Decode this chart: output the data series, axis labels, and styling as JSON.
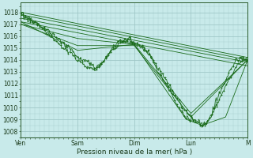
{
  "xlabel": "Pression niveau de la mer( hPa )",
  "bg_color": "#c8eaea",
  "grid_color": "#a0c8c8",
  "line_color": "#1a6b1a",
  "ylim": [
    1007.5,
    1018.8
  ],
  "yticks": [
    1008,
    1009,
    1010,
    1011,
    1012,
    1013,
    1014,
    1015,
    1016,
    1017,
    1018
  ],
  "xtick_labels": [
    "Ven",
    "Sam",
    "Dim",
    "Lun",
    "M"
  ],
  "xtick_positions": [
    0,
    72,
    144,
    216,
    288
  ],
  "total_points": 289,
  "figsize": [
    3.2,
    2.0
  ],
  "dpi": 100
}
